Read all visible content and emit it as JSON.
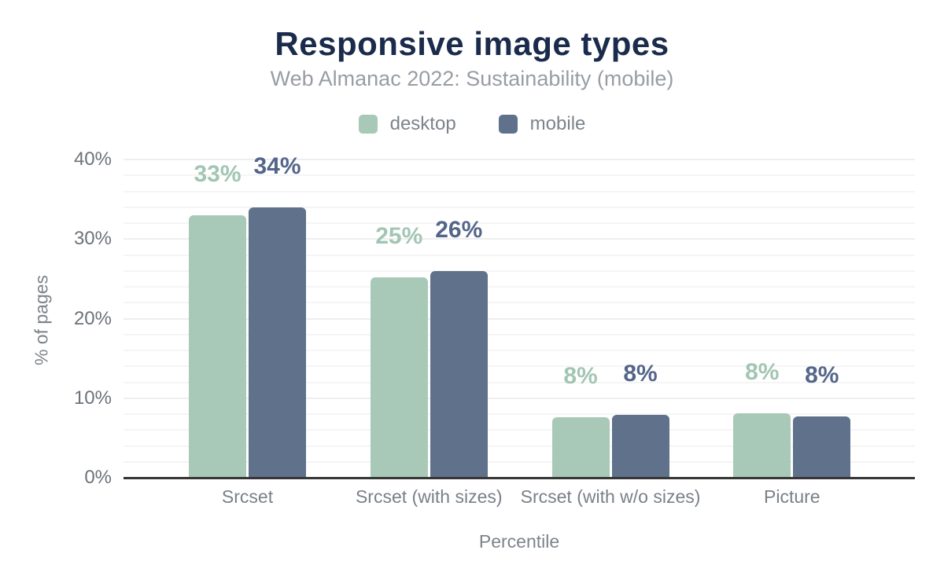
{
  "title": "Responsive image types",
  "subtitle": "Web Almanac 2022: Sustainability (mobile)",
  "legend": [
    {
      "label": "desktop",
      "color": "#a8c9b8"
    },
    {
      "label": "mobile",
      "color": "#60718c"
    }
  ],
  "axes": {
    "y_title": "% of pages",
    "x_title": "Percentile",
    "y_ticks": [
      {
        "label": "0%",
        "value": 0
      },
      {
        "label": "10%",
        "value": 10
      },
      {
        "label": "20%",
        "value": 20
      },
      {
        "label": "30%",
        "value": 30
      },
      {
        "label": "40%",
        "value": 40
      }
    ]
  },
  "chart_data": {
    "type": "bar",
    "title": "Responsive image types",
    "subtitle": "Web Almanac 2022: Sustainability (mobile)",
    "xlabel": "Percentile",
    "ylabel": "% of pages",
    "ylim": [
      0,
      40
    ],
    "grid": {
      "minor_step": 2,
      "major_step": 10,
      "grid_on": true
    },
    "legend_position": "top",
    "categories": [
      "Srcset",
      "Srcset (with sizes)",
      "Srcset (with w/o sizes)",
      "Picture"
    ],
    "series": [
      {
        "name": "desktop",
        "color": "#a8c9b8",
        "label_color": "#a2c6b3",
        "values": [
          33,
          25,
          8,
          8
        ],
        "value_labels": [
          "33%",
          "25%",
          "8%",
          "8%"
        ],
        "values_precise": [
          33,
          25.2,
          7.6,
          8.1
        ]
      },
      {
        "name": "mobile",
        "color": "#60718c",
        "label_color": "#54658a",
        "values": [
          34,
          26,
          8,
          8
        ],
        "value_labels": [
          "34%",
          "26%",
          "8%",
          "8%"
        ],
        "values_precise": [
          34,
          26,
          7.9,
          7.7
        ]
      }
    ]
  }
}
